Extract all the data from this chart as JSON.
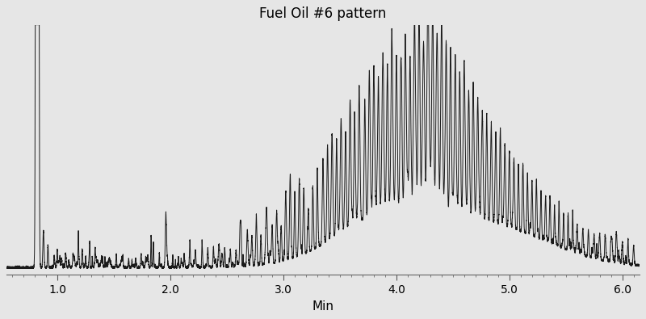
{
  "title": "Fuel Oil #6 pattern",
  "xlabel": "Min",
  "xlim": [
    0.55,
    6.15
  ],
  "ylim": [
    -0.03,
    1.12
  ],
  "xticks": [
    1.0,
    2.0,
    3.0,
    4.0,
    5.0,
    6.0
  ],
  "background_color": "#e6e6e6",
  "line_color": "#1a1a1a",
  "title_fontsize": 12,
  "xlabel_fontsize": 11,
  "line_width": 0.7
}
